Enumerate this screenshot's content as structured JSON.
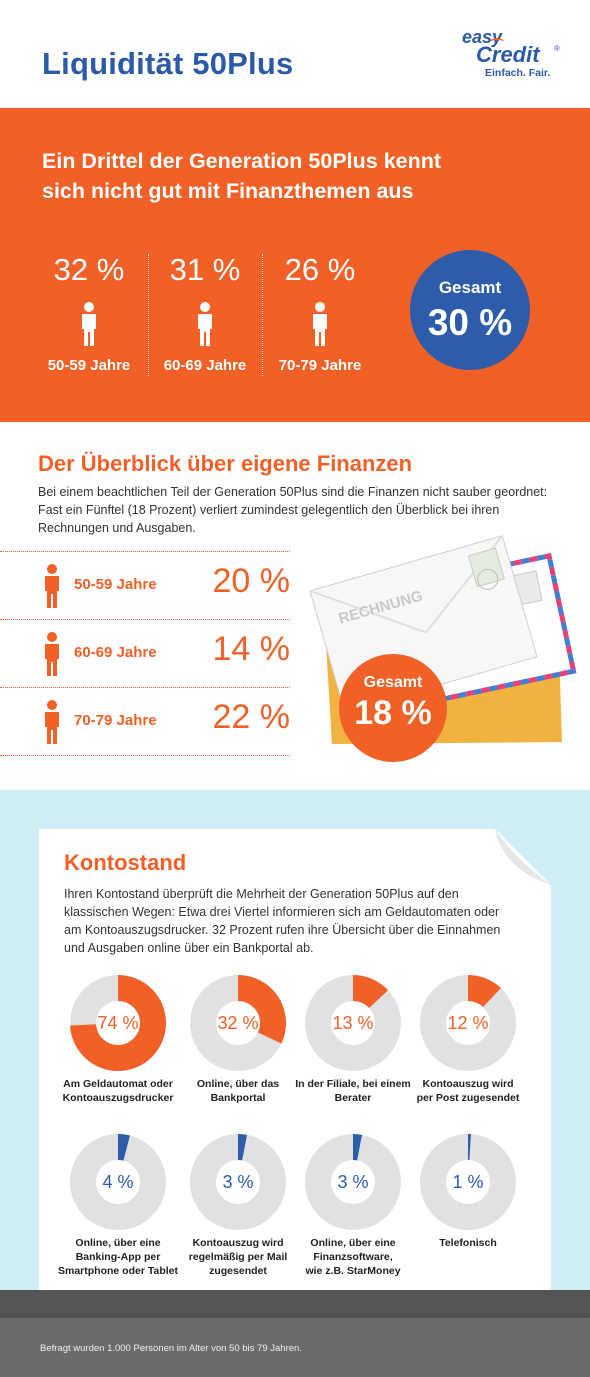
{
  "header": {
    "title": "Liquidität 50Plus",
    "logo": {
      "word1": "easy",
      "word2": "Credit",
      "reg": "®",
      "tagline": "Einfach. Fair."
    }
  },
  "knowledge": {
    "heading_line1": "Ein Drittel der Generation 50Plus kennt",
    "heading_line2": "sich nicht gut mit Finanzthemen aus",
    "groups": [
      {
        "pct": "32 %",
        "label": "50-59 Jahre"
      },
      {
        "pct": "31 %",
        "label": "60-69 Jahre"
      },
      {
        "pct": "26 %",
        "label": "70-79 Jahre"
      }
    ],
    "total": {
      "label": "Gesamt",
      "value": "30 %"
    }
  },
  "overview": {
    "heading": "Der Überblick über eigene Finanzen",
    "text": "Bei einem beachtlichen Teil der Generation 50Plus sind die Finanzen nicht sauber geordnet: Fast ein Fünftel (18 Prozent) verliert zumindest gelegentlich den Überblick bei ihren Rechnungen und Ausgaben.",
    "groups": [
      {
        "label": "50-59 Jahre",
        "pct": "20 %"
      },
      {
        "label": "60-69 Jahre",
        "pct": "14 %"
      },
      {
        "label": "70-79 Jahre",
        "pct": "22 %"
      }
    ],
    "envelope_text": "RECHNUNG",
    "total": {
      "label": "Gesamt",
      "value": "18 %"
    }
  },
  "kontostand": {
    "heading": "Kontostand",
    "text": "Ihren Kontostand überprüft die Mehrheit der Generation 50Plus auf den klassischen Wegen: Etwa drei Viertel informieren sich am Geldautomaten oder am Kontoauszugsdrucker. 32 Prozent rufen ihre Übersicht über die Einnahmen und Ausgaben online über ein Bankportal ab.",
    "items": [
      {
        "pct": "74 %",
        "value": 74,
        "color": "#f16027",
        "label_lines": [
          "Am Geldautomat oder",
          "Kontoauszugsdrucker"
        ]
      },
      {
        "pct": "32 %",
        "value": 32,
        "color": "#f16027",
        "label_lines": [
          "Online, über das",
          "Bankportal"
        ]
      },
      {
        "pct": "13 %",
        "value": 13,
        "color": "#f16027",
        "label_lines": [
          "In der Filiale, bei einem",
          "Berater"
        ]
      },
      {
        "pct": "12 %",
        "value": 12,
        "color": "#f16027",
        "label_lines": [
          "Kontoauszug wird",
          "per Post zugesendet"
        ]
      },
      {
        "pct": "4 %",
        "value": 4,
        "color": "#2d5cab",
        "label_lines": [
          "Online, über eine",
          "Banking-App per",
          "Smartphone oder Tablet"
        ]
      },
      {
        "pct": "3 %",
        "value": 3,
        "color": "#2d5cab",
        "label_lines": [
          "Kontoauszug wird",
          "regelmäßig per Mail",
          "zugesendet"
        ]
      },
      {
        "pct": "3 %",
        "value": 3,
        "color": "#2d5cab",
        "label_lines": [
          "Online, über eine",
          "Finanzsoftware,",
          "wie z.B. StarMoney"
        ]
      },
      {
        "pct": "1 %",
        "value": 1,
        "color": "#2d5cab",
        "label_lines": [
          "Telefonisch"
        ]
      }
    ]
  },
  "footer": {
    "text": "Befragt wurden 1.000 Personen im Alter von 50 bis 79 Jahren."
  },
  "colors": {
    "orange": "#f16027",
    "blue": "#2d5cab",
    "light_blue": "#ceedf7",
    "ring_grey": "#e1e1e1"
  }
}
